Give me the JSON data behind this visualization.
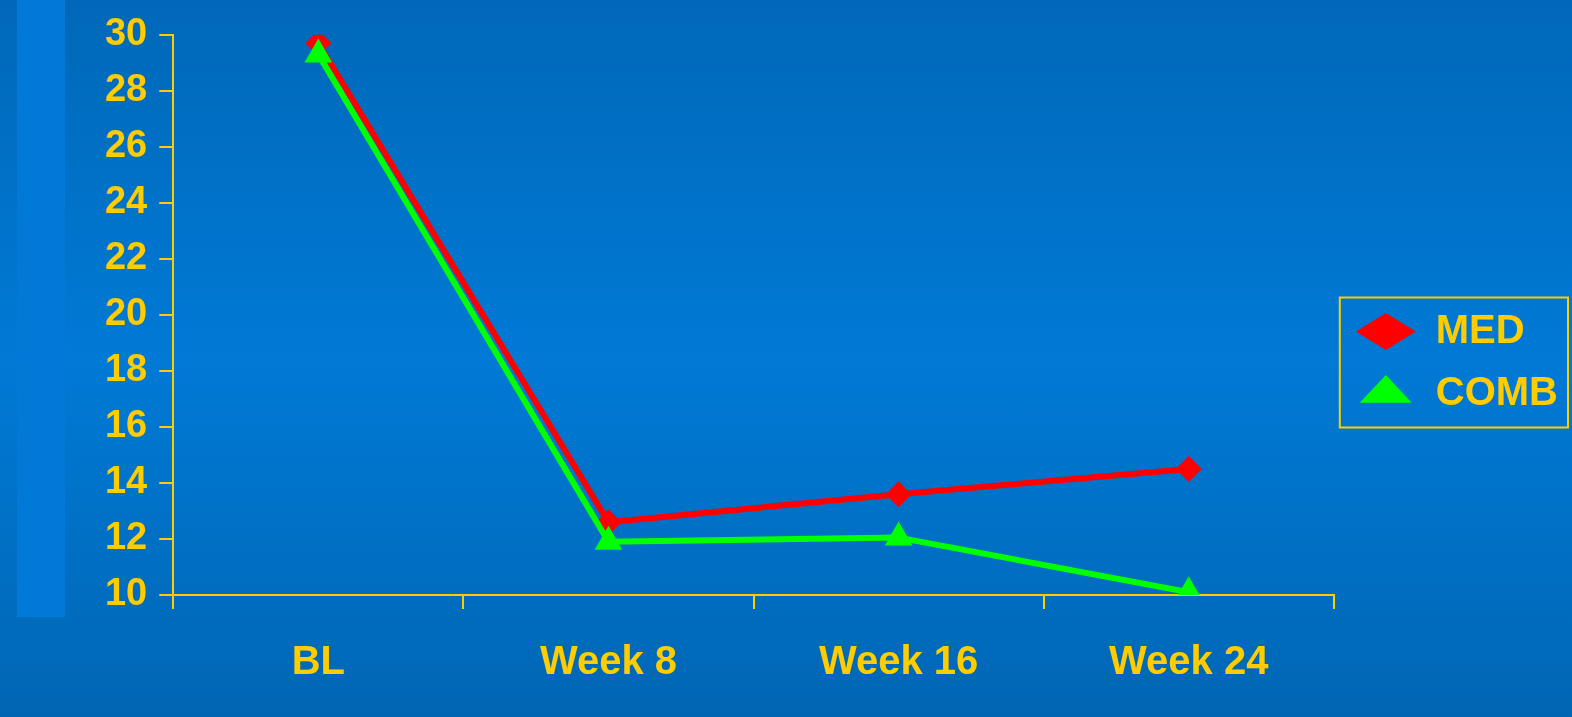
{
  "chart_data": {
    "type": "line",
    "categories": [
      "BL",
      "Week 8",
      "Week 16",
      "Week 24"
    ],
    "series": [
      {
        "name": "MED",
        "color": "#ff0000",
        "marker": "diamond",
        "values": [
          29.7,
          12.6,
          13.6,
          14.5
        ]
      },
      {
        "name": "COMB",
        "color": "#00ff00",
        "marker": "triangle",
        "values": [
          29.3,
          11.9,
          12.05,
          10.1
        ]
      }
    ],
    "ylim": [
      10,
      30
    ],
    "yticks": [
      10,
      12,
      14,
      16,
      18,
      20,
      22,
      24,
      26,
      28,
      30
    ],
    "grid": false,
    "legend": "right",
    "line_style": "solid"
  }
}
